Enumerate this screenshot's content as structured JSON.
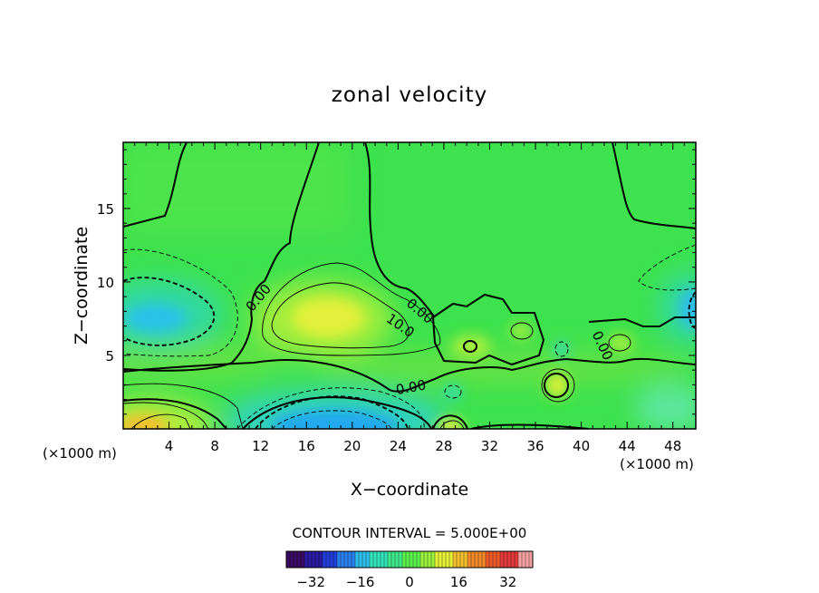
{
  "chart_data": {
    "type": "heatmap",
    "title": "zonal velocity",
    "xlabel": "X−coordinate",
    "ylabel": "Z−coordinate",
    "x_unit_label": "(×1000 m)",
    "z_unit_label": "(×1000 m)",
    "xlim": [
      0,
      50
    ],
    "ylim": [
      0,
      19.5
    ],
    "x_ticks": [
      "4",
      "8",
      "12",
      "16",
      "20",
      "24",
      "28",
      "32",
      "36",
      "40",
      "44",
      "48"
    ],
    "y_ticks": [
      "5",
      "10",
      "15"
    ],
    "contour_interval_text": "CONTOUR INTERVAL = 5.000E+00",
    "contour_labels": [
      "0.00",
      "0.00",
      "10.0",
      "0.00",
      "0.00"
    ],
    "colorbar": {
      "range": [
        -40,
        40
      ],
      "ticks": [
        "−32",
        "−16",
        "0",
        "16",
        "32"
      ],
      "colors": [
        "#3b0a63",
        "#2a1aa0",
        "#1f3fd8",
        "#2a7fef",
        "#2fbde8",
        "#33e0b8",
        "#3fe98a",
        "#5cf04f",
        "#9af040",
        "#e6f038",
        "#f2c02e",
        "#f08a2a",
        "#ec5a2a",
        "#e03a3a",
        "#f4a0a0"
      ]
    },
    "features": [
      {
        "x": 18,
        "z": 8,
        "value": 14,
        "kind": "positive maximum"
      },
      {
        "x": 19,
        "z": 1,
        "value": -22,
        "kind": "negative minimum"
      },
      {
        "x": 3.5,
        "z": 7.5,
        "value": -17,
        "kind": "negative minimum"
      },
      {
        "x": 2.5,
        "z": 0.5,
        "value": 22,
        "kind": "positive maximum"
      },
      {
        "x": 38,
        "z": 3,
        "value": 14,
        "kind": "positive maximum"
      },
      {
        "x": 29.5,
        "z": 6,
        "value": 7,
        "kind": "positive maximum"
      },
      {
        "x": 29,
        "z": 0.6,
        "value": 14,
        "kind": "positive maximum"
      },
      {
        "x": 49.5,
        "z": 8.5,
        "value": -12,
        "kind": "negative minimum"
      }
    ]
  }
}
